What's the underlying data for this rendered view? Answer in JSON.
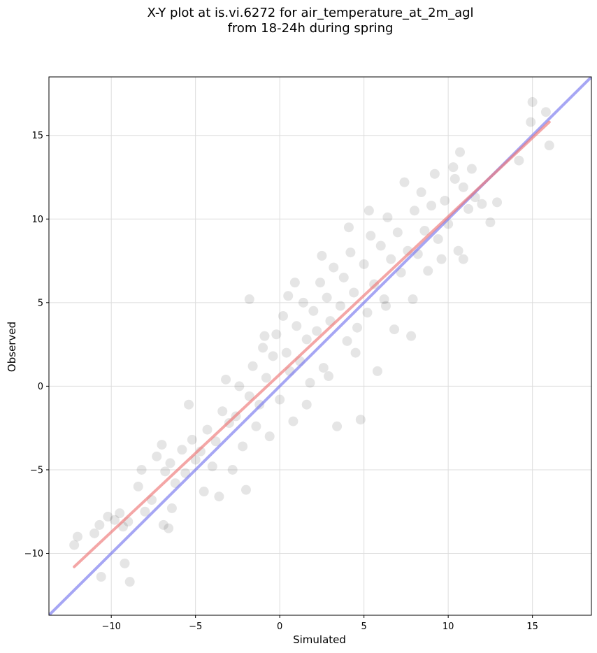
{
  "chart_data": {
    "type": "scatter",
    "title": "X-Y plot at is.vi.6272 for air_temperature_at_2m_agl",
    "subtitle": "from 18-24h during spring",
    "xlabel": "Simulated",
    "ylabel": "Observed",
    "xlim": [
      -13.7,
      18.5
    ],
    "ylim": [
      -13.7,
      18.5
    ],
    "xticks": [
      -10,
      -5,
      0,
      5,
      10,
      15
    ],
    "yticks": [
      -10,
      -5,
      0,
      5,
      10,
      15
    ],
    "xtick_labels": [
      "−10",
      "−5",
      "0",
      "5",
      "10",
      "15"
    ],
    "ytick_labels": [
      "−10",
      "−5",
      "0",
      "5",
      "10",
      "15"
    ],
    "grid": true,
    "point_color": "#000000",
    "point_opacity": 0.1,
    "series": [
      {
        "points": [
          [
            -12.2,
            -9.5
          ],
          [
            -12.0,
            -9.0
          ],
          [
            -11.0,
            -8.8
          ],
          [
            -10.7,
            -8.3
          ],
          [
            -10.2,
            -7.8
          ],
          [
            -9.8,
            -8.0
          ],
          [
            -9.5,
            -7.6
          ],
          [
            -9.3,
            -8.4
          ],
          [
            -9.0,
            -8.1
          ],
          [
            -10.6,
            -11.4
          ],
          [
            -9.2,
            -10.6
          ],
          [
            -8.9,
            -11.7
          ],
          [
            -8.4,
            -6.0
          ],
          [
            -8.0,
            -7.5
          ],
          [
            -8.2,
            -5.0
          ],
          [
            -7.6,
            -6.8
          ],
          [
            -7.3,
            -4.2
          ],
          [
            -7.0,
            -3.5
          ],
          [
            -6.8,
            -5.1
          ],
          [
            -6.5,
            -4.6
          ],
          [
            -6.2,
            -5.8
          ],
          [
            -6.6,
            -8.5
          ],
          [
            -6.9,
            -8.3
          ],
          [
            -6.4,
            -7.3
          ],
          [
            -5.8,
            -3.8
          ],
          [
            -5.6,
            -5.2
          ],
          [
            -5.4,
            -1.1
          ],
          [
            -5.2,
            -3.2
          ],
          [
            -5.0,
            -4.4
          ],
          [
            -4.7,
            -3.9
          ],
          [
            -4.5,
            -6.3
          ],
          [
            -4.3,
            -2.6
          ],
          [
            -4.0,
            -4.8
          ],
          [
            -3.8,
            -3.3
          ],
          [
            -3.6,
            -6.6
          ],
          [
            -3.4,
            -1.5
          ],
          [
            -3.2,
            0.4
          ],
          [
            -3.0,
            -2.2
          ],
          [
            -2.8,
            -5.0
          ],
          [
            -2.6,
            -1.8
          ],
          [
            -2.4,
            0.0
          ],
          [
            -2.2,
            -3.6
          ],
          [
            -2.0,
            -6.2
          ],
          [
            -1.8,
            -0.6
          ],
          [
            -1.6,
            1.2
          ],
          [
            -1.4,
            -2.4
          ],
          [
            -1.2,
            -1.1
          ],
          [
            -1.0,
            2.3
          ],
          [
            -0.8,
            0.5
          ],
          [
            -0.6,
            -3.0
          ],
          [
            -0.4,
            1.8
          ],
          [
            -0.2,
            3.1
          ],
          [
            0.0,
            -0.8
          ],
          [
            0.2,
            4.2
          ],
          [
            0.4,
            2.0
          ],
          [
            0.6,
            0.9
          ],
          [
            0.8,
            -2.1
          ],
          [
            1.0,
            3.6
          ],
          [
            1.2,
            1.5
          ],
          [
            1.4,
            5.0
          ],
          [
            1.6,
            2.8
          ],
          [
            1.8,
            0.2
          ],
          [
            2.0,
            4.5
          ],
          [
            2.2,
            3.3
          ],
          [
            2.4,
            6.2
          ],
          [
            2.6,
            1.1
          ],
          [
            2.8,
            5.3
          ],
          [
            3.0,
            3.9
          ],
          [
            3.2,
            7.1
          ],
          [
            3.4,
            -2.4
          ],
          [
            3.6,
            4.8
          ],
          [
            3.8,
            6.5
          ],
          [
            4.0,
            2.7
          ],
          [
            4.2,
            8.0
          ],
          [
            4.4,
            5.6
          ],
          [
            4.6,
            3.5
          ],
          [
            4.8,
            -2.0
          ],
          [
            5.0,
            7.3
          ],
          [
            5.2,
            4.4
          ],
          [
            5.4,
            9.0
          ],
          [
            5.6,
            6.1
          ],
          [
            5.8,
            0.9
          ],
          [
            6.0,
            8.4
          ],
          [
            6.2,
            5.2
          ],
          [
            6.4,
            10.1
          ],
          [
            6.6,
            7.6
          ],
          [
            6.8,
            3.4
          ],
          [
            7.0,
            9.2
          ],
          [
            7.2,
            6.8
          ],
          [
            7.4,
            12.2
          ],
          [
            7.6,
            8.1
          ],
          [
            7.8,
            3.0
          ],
          [
            8.0,
            10.5
          ],
          [
            8.2,
            7.9
          ],
          [
            8.4,
            11.6
          ],
          [
            8.6,
            9.3
          ],
          [
            8.8,
            6.9
          ],
          [
            9.0,
            10.8
          ],
          [
            9.2,
            12.7
          ],
          [
            9.4,
            8.8
          ],
          [
            9.6,
            7.6
          ],
          [
            9.8,
            11.1
          ],
          [
            10.0,
            9.7
          ],
          [
            10.3,
            13.1
          ],
          [
            10.6,
            8.1
          ],
          [
            10.9,
            11.9
          ],
          [
            11.2,
            10.6
          ],
          [
            11.6,
            11.3
          ],
          [
            12.0,
            10.9
          ],
          [
            12.5,
            9.8
          ],
          [
            12.9,
            11.0
          ],
          [
            14.2,
            13.5
          ],
          [
            14.9,
            15.8
          ],
          [
            15.0,
            17.0
          ],
          [
            15.8,
            16.4
          ],
          [
            16.0,
            14.4
          ],
          [
            10.7,
            14.0
          ],
          [
            11.4,
            13.0
          ],
          [
            10.4,
            12.4
          ],
          [
            10.9,
            7.6
          ],
          [
            0.5,
            5.4
          ],
          [
            -0.9,
            3.0
          ],
          [
            1.6,
            -1.1
          ],
          [
            2.9,
            0.6
          ],
          [
            4.5,
            2.0
          ],
          [
            6.3,
            4.8
          ],
          [
            -1.8,
            5.2
          ],
          [
            0.9,
            6.2
          ],
          [
            2.5,
            7.8
          ],
          [
            4.1,
            9.5
          ],
          [
            5.3,
            10.5
          ],
          [
            7.9,
            5.2
          ]
        ]
      }
    ],
    "fit_line": {
      "name": "",
      "color": "#ee7777",
      "x": [
        -12.2,
        16.0
      ],
      "y": [
        -10.8,
        15.8
      ]
    },
    "identity_line": {
      "name": "",
      "color": "#7777ee",
      "x": [
        -13.7,
        18.5
      ],
      "y": [
        -13.7,
        18.5
      ]
    }
  }
}
